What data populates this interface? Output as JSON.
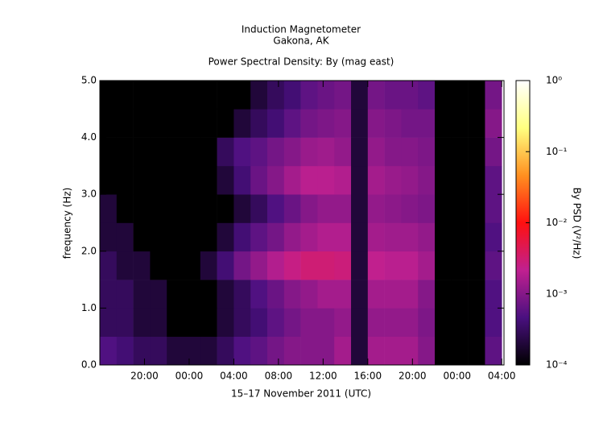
{
  "chart_data": {
    "type": "heatmap",
    "title": "Induction Magnetometer",
    "subtitle": "Gakona, AK",
    "plot_title": "Power Spectral Density: By (mag east)",
    "xlabel": "15–17 November 2011 (UTC)",
    "ylabel": "frequency (Hz)",
    "colorbar_label": "By PSD (V²/Hz)",
    "colormap": [
      "#000000",
      "#4a1080",
      "#c02090",
      "#ff1010",
      "#ff9020",
      "#ffff80",
      "#ffffff"
    ],
    "color_log": true,
    "clim": [
      0.0001,
      1
    ],
    "cticks": [
      {
        "value": 0.0001,
        "label": "10⁻⁴"
      },
      {
        "value": 0.001,
        "label": "10⁻³"
      },
      {
        "value": 0.01,
        "label": "10⁻²"
      },
      {
        "value": 0.1,
        "label": "10⁻¹"
      },
      {
        "value": 1,
        "label": "10⁰"
      }
    ],
    "xlim": [
      16,
      52.2
    ],
    "xticks": [
      {
        "value": 20,
        "label": "20:00"
      },
      {
        "value": 24,
        "label": "00:00"
      },
      {
        "value": 28,
        "label": "04:00"
      },
      {
        "value": 32,
        "label": "08:00"
      },
      {
        "value": 36,
        "label": "12:00"
      },
      {
        "value": 40,
        "label": "16:00"
      },
      {
        "value": 44,
        "label": "20:00"
      },
      {
        "value": 48,
        "label": "00:00"
      },
      {
        "value": 52,
        "label": "04:00"
      }
    ],
    "ylim": [
      0,
      5
    ],
    "yticks": [
      {
        "value": 0,
        "label": "0.0"
      },
      {
        "value": 1,
        "label": "1.0"
      },
      {
        "value": 2,
        "label": "2.0"
      },
      {
        "value": 3,
        "label": "3.0"
      },
      {
        "value": 4,
        "label": "4.0"
      },
      {
        "value": 5,
        "label": "5.0"
      }
    ],
    "x": [
      16.75,
      18.25,
      19.75,
      21.25,
      22.75,
      24.25,
      25.75,
      27.25,
      28.75,
      30.25,
      31.75,
      33.25,
      34.75,
      36.25,
      37.75,
      39.25,
      40.75,
      42.25,
      43.75,
      45.25,
      46.75,
      48.25,
      49.75,
      51.25
    ],
    "y": [
      0.25,
      0.75,
      1.25,
      1.75,
      2.25,
      2.75,
      3.25,
      3.75,
      4.25,
      4.75
    ],
    "z": [
      [
        0.0005,
        0.0004,
        0.0003,
        0.0003,
        0.0002,
        0.0002,
        0.0002,
        0.0003,
        0.0005,
        0.0006,
        0.0008,
        0.001,
        0.001,
        0.001,
        0.0015,
        0.0002,
        0.0015,
        0.0015,
        0.0015,
        0.001,
        0.0001,
        0.0001,
        0.0001,
        0.0006
      ],
      [
        0.0003,
        0.0003,
        0.0002,
        0.0002,
        0.0001,
        0.0001,
        0.0001,
        0.0002,
        0.0003,
        0.0004,
        0.0006,
        0.0008,
        0.001,
        0.001,
        0.0012,
        0.0002,
        0.0012,
        0.0012,
        0.0012,
        0.0009,
        0.0001,
        0.0001,
        0.0001,
        0.0005
      ],
      [
        0.0003,
        0.0003,
        0.0002,
        0.0002,
        0.0001,
        0.0001,
        0.0001,
        0.0002,
        0.0003,
        0.0005,
        0.0007,
        0.001,
        0.0012,
        0.0015,
        0.0015,
        0.0002,
        0.0015,
        0.0015,
        0.0015,
        0.001,
        0.0001,
        0.0001,
        0.0001,
        0.0005
      ],
      [
        0.0003,
        0.0002,
        0.0002,
        0.0001,
        0.0001,
        0.0001,
        0.0002,
        0.0004,
        0.0008,
        0.0012,
        0.0018,
        0.0025,
        0.003,
        0.003,
        0.0028,
        0.0002,
        0.0022,
        0.002,
        0.002,
        0.0015,
        0.0001,
        0.0001,
        0.0001,
        0.0006
      ],
      [
        0.0002,
        0.0002,
        0.0001,
        0.0001,
        0.0001,
        0.0001,
        0.0001,
        0.0002,
        0.0004,
        0.0006,
        0.0008,
        0.0012,
        0.0015,
        0.0018,
        0.0018,
        0.0002,
        0.0015,
        0.0014,
        0.0014,
        0.0012,
        0.0001,
        0.0001,
        0.0001,
        0.0005
      ],
      [
        0.0002,
        0.0001,
        0.0001,
        0.0001,
        0.0001,
        0.0001,
        0.0001,
        0.0001,
        0.0002,
        0.0003,
        0.0005,
        0.0007,
        0.001,
        0.0012,
        0.0012,
        0.0002,
        0.0012,
        0.0011,
        0.001,
        0.0009,
        0.0001,
        0.0001,
        0.0001,
        0.0006
      ],
      [
        0.0001,
        0.0001,
        0.0001,
        0.0001,
        0.0001,
        0.0001,
        0.0001,
        0.0002,
        0.0004,
        0.0007,
        0.001,
        0.0015,
        0.002,
        0.002,
        0.0018,
        0.0002,
        0.0015,
        0.0013,
        0.0012,
        0.001,
        0.0001,
        0.0001,
        0.0001,
        0.0006
      ],
      [
        0.0001,
        0.0001,
        0.0001,
        0.0001,
        0.0001,
        0.0001,
        0.0001,
        0.0003,
        0.0005,
        0.0006,
        0.0008,
        0.001,
        0.0013,
        0.0014,
        0.0012,
        0.0002,
        0.0012,
        0.001,
        0.001,
        0.0009,
        0.0001,
        0.0001,
        0.0001,
        0.0008
      ],
      [
        0.0001,
        0.0001,
        0.0001,
        0.0001,
        0.0001,
        0.0001,
        0.0001,
        0.0001,
        0.0002,
        0.0003,
        0.0004,
        0.0006,
        0.0008,
        0.0009,
        0.001,
        0.0002,
        0.001,
        0.0009,
        0.0008,
        0.0008,
        0.0001,
        0.0001,
        0.0001,
        0.001
      ],
      [
        0.0001,
        0.0001,
        0.0001,
        0.0001,
        0.0001,
        0.0001,
        0.0001,
        0.0001,
        0.0001,
        0.0002,
        0.0003,
        0.0004,
        0.0006,
        0.0007,
        0.0008,
        0.0002,
        0.0008,
        0.0007,
        0.0007,
        0.0006,
        0.0001,
        0.0001,
        0.0001,
        0.0008
      ]
    ]
  }
}
